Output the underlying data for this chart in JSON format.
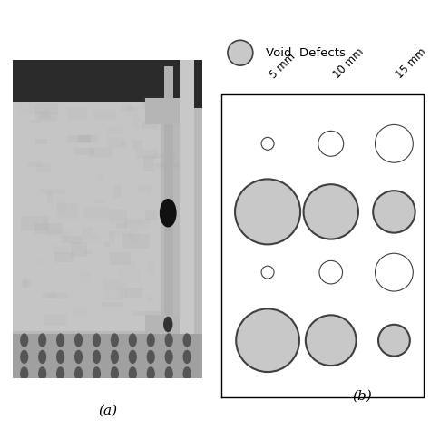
{
  "legend_circle_color": "#c8c8c8",
  "legend_circle_edge": "#404040",
  "legend_label": "Void  Defects",
  "col_labels": [
    "5 mm",
    "10 mm",
    "15 mm"
  ],
  "col_label_rotation": 45,
  "col_label_fontsize": 8.5,
  "circle_fill": "#c8c8c8",
  "circle_edge": "#404040",
  "tiny_fill": "#ffffff",
  "tiny_edge": "#404040",
  "label_a": "(a)",
  "label_b": "(b)",
  "label_fontsize": 11,
  "background_color": "#ffffff",
  "photo_bg": "#b8b8b8",
  "photo_dark": "#1e1e1e",
  "photo_metal": "#c0c0c0",
  "photo_bracket": "#a0a0a0"
}
